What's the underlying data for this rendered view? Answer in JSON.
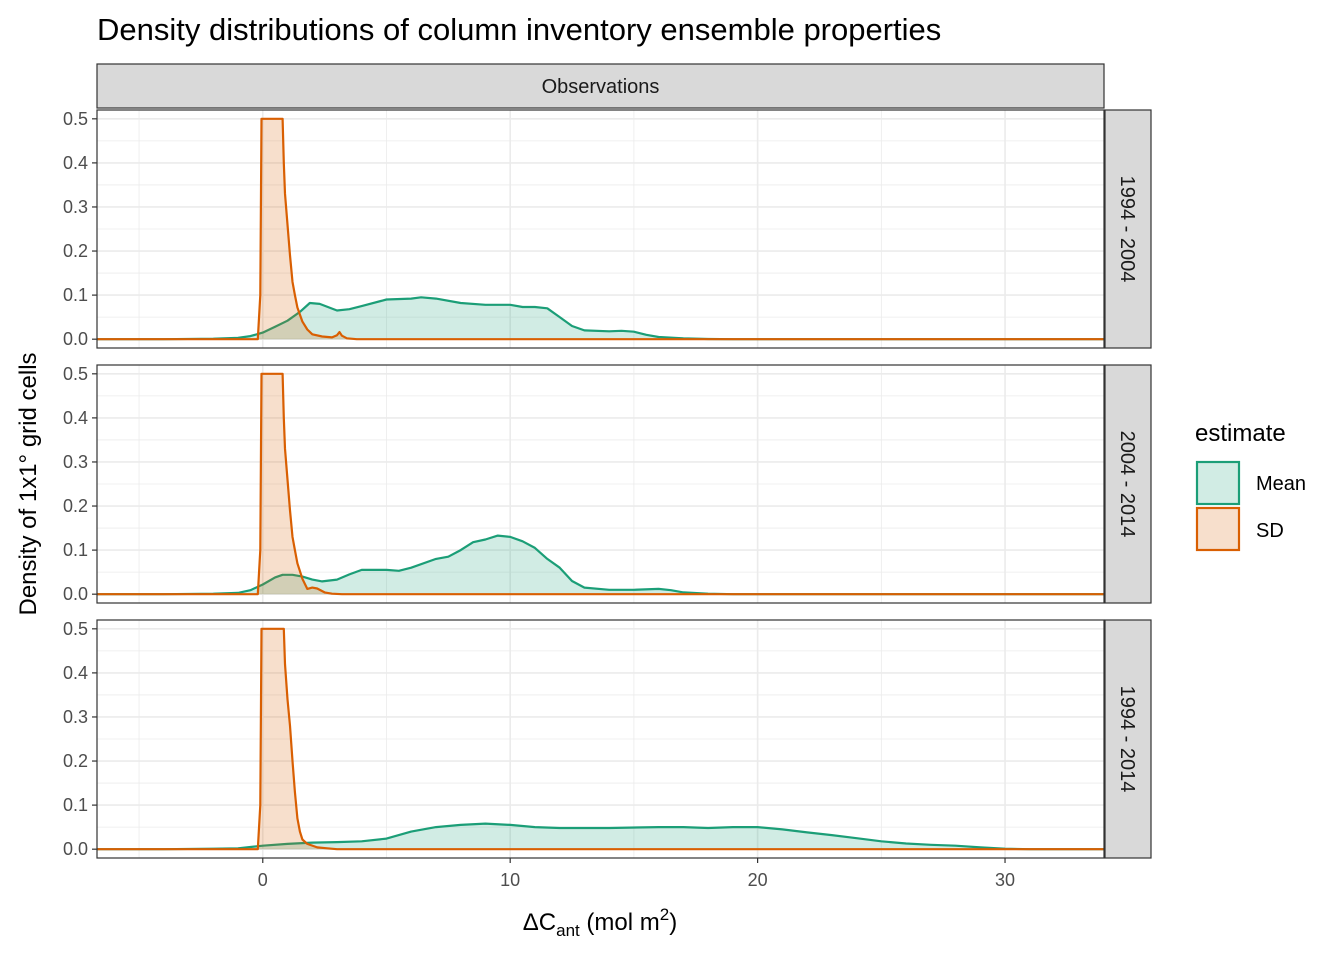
{
  "colors": {
    "mean": "#1b9e77",
    "sd": "#d95f02",
    "strip_bg": "#d9d9d9",
    "grid": "#ebebeb",
    "panel_border": "#333333"
  },
  "chart_data": {
    "type": "area",
    "title": "Density distributions of column inventory ensemble properties",
    "xlabel_parts": {
      "main": "ΔC",
      "sub": "ant",
      "unit": " (mol m",
      "sup": "2",
      "close": ")"
    },
    "ylabel": "Density of 1x1° grid cells",
    "xlim": [
      -6.7,
      34
    ],
    "ylim": [
      -0.02,
      0.52
    ],
    "x_ticks": [
      0,
      10,
      20,
      30
    ],
    "x_tick_labels": [
      "0",
      "10",
      "20",
      "30"
    ],
    "y_ticks": [
      0,
      0.1,
      0.2,
      0.3,
      0.4,
      0.5
    ],
    "y_tick_labels": [
      "0.0",
      "0.1",
      "0.2",
      "0.3",
      "0.4",
      "0.5"
    ],
    "grid": true,
    "column_strip": "Observations",
    "legend": {
      "title": "estimate",
      "position": "right",
      "entries": [
        "Mean",
        "SD"
      ]
    },
    "panels": [
      {
        "label": "1994 - 2004",
        "series": [
          {
            "name": "Mean",
            "points": [
              [
                -6.7,
                0
              ],
              [
                -4,
                0
              ],
              [
                -2,
                0.001
              ],
              [
                -1,
                0.003
              ],
              [
                -0.5,
                0.007
              ],
              [
                0,
                0.015
              ],
              [
                0.5,
                0.028
              ],
              [
                1,
                0.042
              ],
              [
                1.5,
                0.062
              ],
              [
                1.9,
                0.082
              ],
              [
                2.3,
                0.08
              ],
              [
                3,
                0.065
              ],
              [
                3.5,
                0.068
              ],
              [
                4,
                0.075
              ],
              [
                5,
                0.09
              ],
              [
                6,
                0.092
              ],
              [
                6.4,
                0.095
              ],
              [
                7,
                0.092
              ],
              [
                8,
                0.082
              ],
              [
                9,
                0.078
              ],
              [
                10,
                0.078
              ],
              [
                10.5,
                0.073
              ],
              [
                11,
                0.073
              ],
              [
                11.5,
                0.07
              ],
              [
                12,
                0.05
              ],
              [
                12.5,
                0.03
              ],
              [
                13,
                0.02
              ],
              [
                14,
                0.018
              ],
              [
                14.5,
                0.019
              ],
              [
                15,
                0.017
              ],
              [
                15.5,
                0.01
              ],
              [
                16,
                0.005
              ],
              [
                17,
                0.002
              ],
              [
                18,
                0.0005
              ],
              [
                19,
                0
              ],
              [
                34,
                0
              ]
            ]
          },
          {
            "name": "SD",
            "points": [
              [
                -6.7,
                0
              ],
              [
                -0.2,
                0
              ],
              [
                -0.1,
                0.1
              ],
              [
                -0.05,
                0.5
              ],
              [
                0.8,
                0.5
              ],
              [
                0.85,
                0.4
              ],
              [
                0.9,
                0.33
              ],
              [
                1.0,
                0.26
              ],
              [
                1.1,
                0.19
              ],
              [
                1.2,
                0.13
              ],
              [
                1.3,
                0.1
              ],
              [
                1.4,
                0.072
              ],
              [
                1.6,
                0.04
              ],
              [
                1.8,
                0.022
              ],
              [
                2,
                0.011
              ],
              [
                2.4,
                0.006
              ],
              [
                2.8,
                0.004
              ],
              [
                3.0,
                0.009
              ],
              [
                3.1,
                0.016
              ],
              [
                3.2,
                0.008
              ],
              [
                3.4,
                0.002
              ],
              [
                3.8,
                0
              ],
              [
                34,
                0
              ]
            ]
          }
        ]
      },
      {
        "label": "2004 - 2014",
        "series": [
          {
            "name": "Mean",
            "points": [
              [
                -6.7,
                0
              ],
              [
                -4,
                0
              ],
              [
                -2,
                0.001
              ],
              [
                -1,
                0.003
              ],
              [
                -0.5,
                0.009
              ],
              [
                0,
                0.022
              ],
              [
                0.5,
                0.038
              ],
              [
                0.8,
                0.044
              ],
              [
                1.2,
                0.044
              ],
              [
                1.6,
                0.04
              ],
              [
                2,
                0.033
              ],
              [
                2.4,
                0.029
              ],
              [
                3,
                0.033
              ],
              [
                3.5,
                0.045
              ],
              [
                4,
                0.055
              ],
              [
                5,
                0.055
              ],
              [
                5.5,
                0.053
              ],
              [
                6,
                0.06
              ],
              [
                7,
                0.08
              ],
              [
                7.5,
                0.085
              ],
              [
                8,
                0.1
              ],
              [
                8.5,
                0.118
              ],
              [
                9,
                0.124
              ],
              [
                9.5,
                0.133
              ],
              [
                10,
                0.13
              ],
              [
                10.5,
                0.12
              ],
              [
                11,
                0.105
              ],
              [
                11.5,
                0.08
              ],
              [
                12,
                0.06
              ],
              [
                12.5,
                0.03
              ],
              [
                13,
                0.015
              ],
              [
                14,
                0.01
              ],
              [
                15,
                0.01
              ],
              [
                16,
                0.012
              ],
              [
                16.5,
                0.009
              ],
              [
                17,
                0.004
              ],
              [
                18,
                0.001
              ],
              [
                19,
                0
              ],
              [
                34,
                0
              ]
            ]
          },
          {
            "name": "SD",
            "points": [
              [
                -6.7,
                0
              ],
              [
                -0.2,
                0
              ],
              [
                -0.1,
                0.1
              ],
              [
                -0.05,
                0.5
              ],
              [
                0.8,
                0.5
              ],
              [
                0.85,
                0.4
              ],
              [
                0.9,
                0.33
              ],
              [
                1.0,
                0.26
              ],
              [
                1.1,
                0.19
              ],
              [
                1.2,
                0.13
              ],
              [
                1.3,
                0.1
              ],
              [
                1.4,
                0.07
              ],
              [
                1.6,
                0.035
              ],
              [
                1.8,
                0.012
              ],
              [
                2,
                0.015
              ],
              [
                2.2,
                0.013
              ],
              [
                2.5,
                0.004
              ],
              [
                2.8,
                0.001
              ],
              [
                3.2,
                0
              ],
              [
                34,
                0
              ]
            ]
          }
        ]
      },
      {
        "label": "1994 - 2014",
        "series": [
          {
            "name": "Mean",
            "points": [
              [
                -6.7,
                0
              ],
              [
                -4,
                0
              ],
              [
                -2,
                0.001
              ],
              [
                -1,
                0.002
              ],
              [
                -0.5,
                0.005
              ],
              [
                0,
                0.008
              ],
              [
                1,
                0.012
              ],
              [
                2,
                0.015
              ],
              [
                3,
                0.016
              ],
              [
                4,
                0.018
              ],
              [
                5,
                0.024
              ],
              [
                6,
                0.04
              ],
              [
                7,
                0.05
              ],
              [
                8,
                0.055
              ],
              [
                9,
                0.058
              ],
              [
                10,
                0.055
              ],
              [
                11,
                0.05
              ],
              [
                12,
                0.048
              ],
              [
                14,
                0.048
              ],
              [
                16,
                0.05
              ],
              [
                17,
                0.05
              ],
              [
                18,
                0.048
              ],
              [
                19,
                0.05
              ],
              [
                20,
                0.05
              ],
              [
                21,
                0.045
              ],
              [
                22,
                0.038
              ],
              [
                23,
                0.032
              ],
              [
                24,
                0.025
              ],
              [
                25,
                0.018
              ],
              [
                26,
                0.013
              ],
              [
                27,
                0.01
              ],
              [
                28,
                0.008
              ],
              [
                29,
                0.004
              ],
              [
                30,
                0.001
              ],
              [
                31,
                0
              ],
              [
                34,
                0
              ]
            ]
          },
          {
            "name": "SD",
            "points": [
              [
                -6.7,
                0
              ],
              [
                -0.2,
                0
              ],
              [
                -0.1,
                0.1
              ],
              [
                -0.05,
                0.5
              ],
              [
                0.85,
                0.5
              ],
              [
                0.9,
                0.42
              ],
              [
                1.0,
                0.34
              ],
              [
                1.1,
                0.28
              ],
              [
                1.2,
                0.2
              ],
              [
                1.3,
                0.13
              ],
              [
                1.4,
                0.07
              ],
              [
                1.5,
                0.04
              ],
              [
                1.6,
                0.022
              ],
              [
                1.8,
                0.012
              ],
              [
                2.2,
                0.004
              ],
              [
                2.6,
                0.002
              ],
              [
                3,
                0
              ],
              [
                34,
                0
              ]
            ]
          }
        ]
      }
    ]
  }
}
